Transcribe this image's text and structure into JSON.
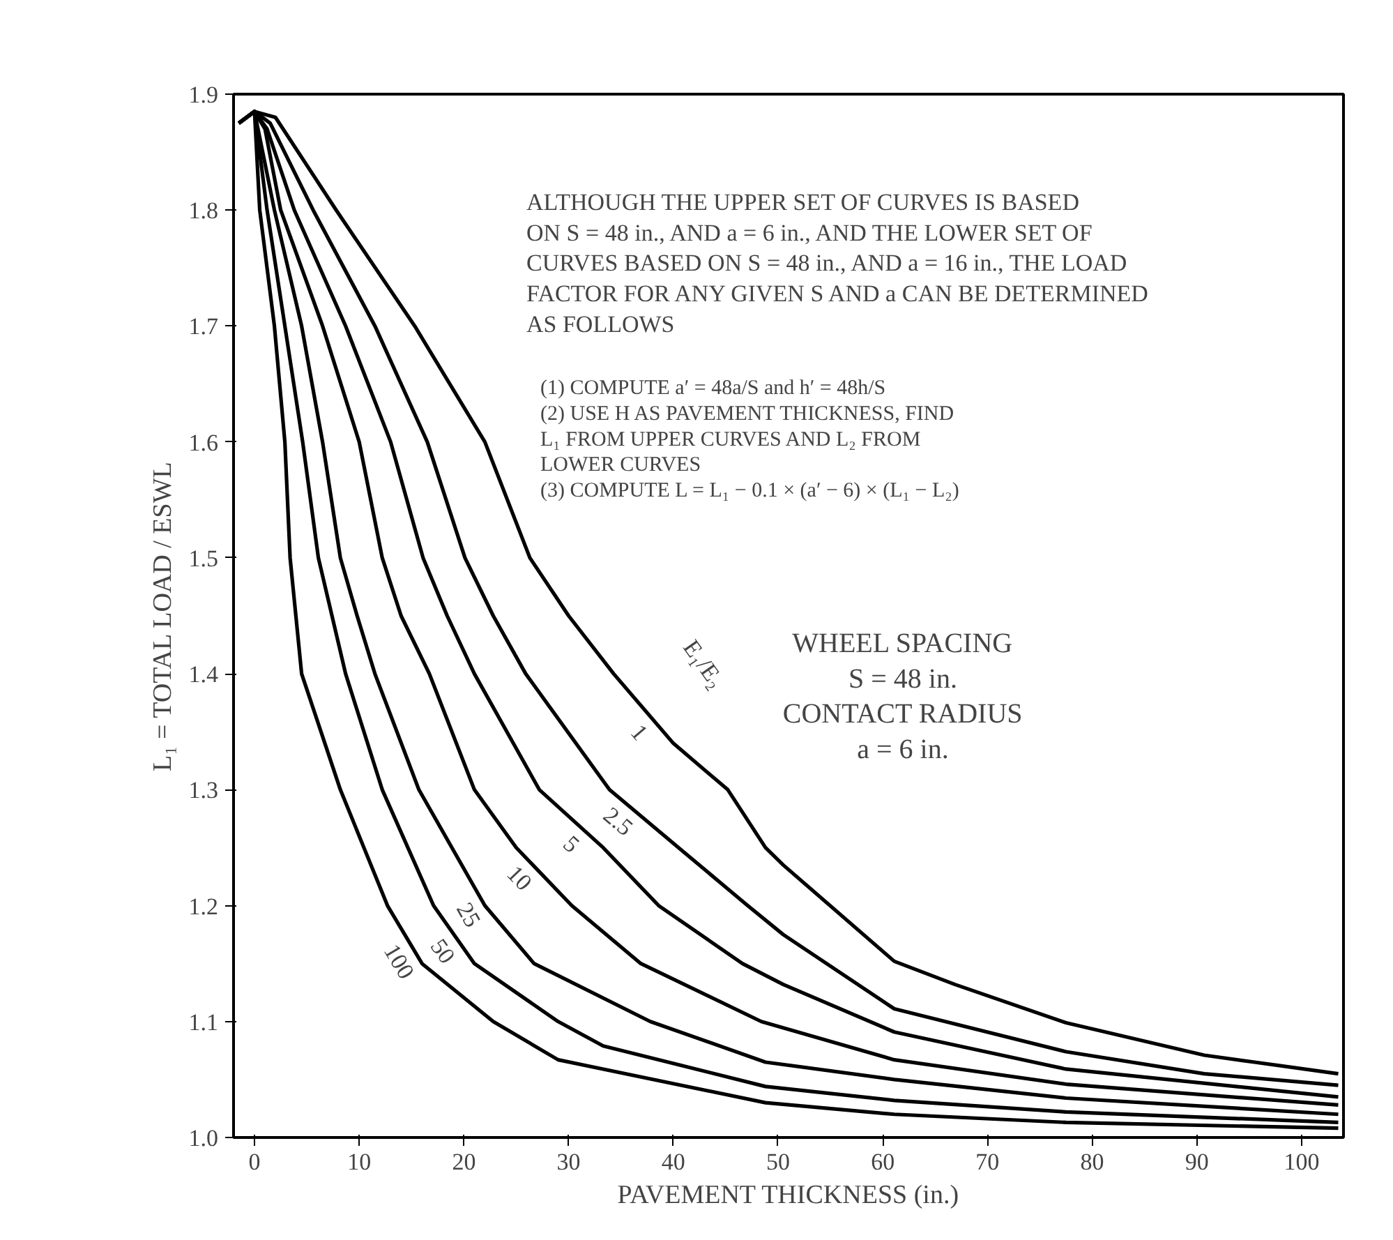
{
  "chart_data": {
    "type": "line",
    "xlabel": "PAVEMENT THICKNESS (in.)",
    "ylabel": "L₁ = TOTAL LOAD / ESWL",
    "xlim": [
      -2,
      104
    ],
    "ylim": [
      1.0,
      1.9
    ],
    "xticks": [
      0,
      10,
      20,
      30,
      40,
      50,
      60,
      70,
      80,
      90,
      100
    ],
    "yticks": [
      {
        "value": 1.0,
        "label": "1.0"
      },
      1.1,
      1.2,
      1.3,
      1.4,
      1.5,
      1.6,
      1.7,
      1.8,
      1.9
    ],
    "grid": false,
    "marker": "none",
    "line_style": "solid",
    "series": [
      {
        "name": "1",
        "color": "#000000",
        "x": [
          -1.5,
          0,
          2,
          7.8,
          15.3,
          22,
          26.3,
          30,
          34.3,
          40,
          45.2,
          48.8,
          50.5,
          61.1,
          66.9,
          77.5,
          90.7,
          103.5
        ],
        "values": [
          1.875,
          1.885,
          1.88,
          1.8,
          1.7,
          1.6,
          1.5,
          1.45,
          1.4,
          1.34,
          1.3,
          1.25,
          1.235,
          1.152,
          1.132,
          1.099,
          1.071,
          1.055
        ]
      },
      {
        "name": "2.5",
        "color": "#000000",
        "x": [
          -1.5,
          0,
          1.5,
          5.6,
          11.5,
          16.5,
          20.1,
          22.8,
          25.9,
          33.9,
          40.5,
          47.1,
          50.5,
          61.1,
          77.5,
          90.7,
          103.5
        ],
        "values": [
          1.875,
          1.885,
          1.875,
          1.8,
          1.7,
          1.6,
          1.5,
          1.45,
          1.4,
          1.3,
          1.25,
          1.2,
          1.175,
          1.111,
          1.074,
          1.055,
          1.045
        ]
      },
      {
        "name": "5",
        "color": "#000000",
        "x": [
          -1.5,
          0,
          1.2,
          3.8,
          8.7,
          13,
          16.1,
          18.4,
          21,
          27.2,
          33.3,
          38.6,
          46.6,
          50.5,
          61.1,
          77.5,
          103.5
        ],
        "values": [
          1.875,
          1.885,
          1.87,
          1.8,
          1.7,
          1.6,
          1.5,
          1.45,
          1.4,
          1.3,
          1.25,
          1.2,
          1.15,
          1.132,
          1.091,
          1.059,
          1.035
        ]
      },
      {
        "name": "10",
        "color": "#000000",
        "x": [
          -1.5,
          0,
          1,
          2.5,
          6.5,
          10,
          12.2,
          14,
          16.7,
          21,
          25,
          30.3,
          36.9,
          48.4,
          61.1,
          77.5,
          103.5
        ],
        "values": [
          1.875,
          1.885,
          1.87,
          1.8,
          1.7,
          1.6,
          1.5,
          1.45,
          1.4,
          1.3,
          1.25,
          1.2,
          1.15,
          1.1,
          1.067,
          1.046,
          1.028
        ]
      },
      {
        "name": "25",
        "color": "#000000",
        "x": [
          -1.5,
          0,
          1.9,
          4.5,
          6.5,
          8.2,
          9.8,
          11.5,
          15.7,
          22,
          26.7,
          37.8,
          48.8,
          61.1,
          77.5,
          103.5
        ],
        "values": [
          1.875,
          1.885,
          1.8,
          1.7,
          1.6,
          1.5,
          1.45,
          1.4,
          1.3,
          1.2,
          1.15,
          1.1,
          1.065,
          1.05,
          1.034,
          1.02
        ]
      },
      {
        "name": "50",
        "color": "#000000",
        "x": [
          -1.5,
          0,
          1.2,
          2.9,
          4.6,
          6.1,
          8.7,
          12.2,
          17.1,
          21,
          29,
          33.3,
          48.8,
          61.1,
          77.5,
          103.5
        ],
        "values": [
          1.875,
          1.885,
          1.8,
          1.7,
          1.6,
          1.5,
          1.4,
          1.3,
          1.2,
          1.15,
          1.1,
          1.079,
          1.044,
          1.032,
          1.022,
          1.013
        ]
      },
      {
        "name": "100",
        "color": "#000000",
        "x": [
          -1.5,
          0,
          0.5,
          1.9,
          2.9,
          3.4,
          4.5,
          8.2,
          12.7,
          16,
          22.8,
          29,
          48.8,
          61.1,
          77.5,
          103.5
        ],
        "values": [
          1.875,
          1.885,
          1.8,
          1.7,
          1.6,
          1.5,
          1.4,
          1.3,
          1.2,
          1.15,
          1.1,
          1.067,
          1.03,
          1.02,
          1.013,
          1.008
        ]
      }
    ],
    "annotations": [
      "E₁/E₂",
      "ALTHOUGH THE UPPER SET OF CURVES IS BASED\nON S = 48 in., AND a = 6 in., AND THE LOWER SET OF\nCURVES BASED ON S = 48 in., AND a = 16 in., THE LOAD\nFACTOR FOR ANY GIVEN S AND a CAN BE DETERMINED\nAS FOLLOWS",
      "(1) COMPUTE a′ = 48a/S and h′ = 48h/S\n(2) USE H AS PAVEMENT THICKNESS, FIND\n      L₁ FROM UPPER CURVES AND L₂ FROM\n      LOWER CURVES\n(3) COMPUTE L = L₁ − 0.1 × (a′ − 6) × (L₁ − L₂)",
      "WHEEL SPACING\nS = 48 in.\nCONTACT RADIUS\na = 6 in."
    ]
  }
}
